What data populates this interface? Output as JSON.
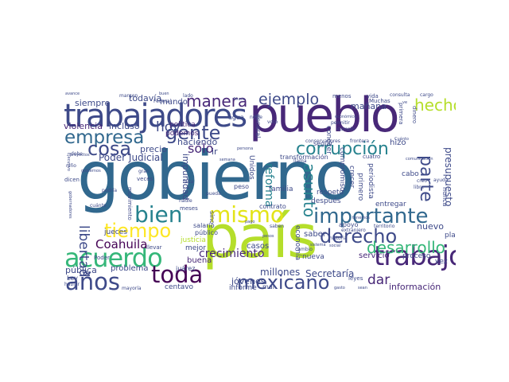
{
  "palette": [
    "#440154",
    "#482878",
    "#3e4a89",
    "#31688e",
    "#26828e",
    "#1f9e89",
    "#35b779",
    "#6ece58",
    "#b5de2b",
    "#fde725"
  ],
  "words": [
    {
      "text": "gobierno",
      "color": "#31688e"
    },
    {
      "text": "país",
      "color": "#b5de2b"
    },
    {
      "text": "pueblo",
      "color": "#482878"
    },
    {
      "text": "trabajadores",
      "color": "#3e4a89"
    },
    {
      "text": "mismo",
      "color": "#e3e418"
    },
    {
      "text": "importante",
      "color": "#31688e"
    },
    {
      "text": "acuerdo",
      "color": "#35b779"
    },
    {
      "text": "años",
      "color": "#3e4a89"
    },
    {
      "text": "toda",
      "color": "#440154"
    },
    {
      "text": "trabajo",
      "color": "#482878"
    },
    {
      "text": "bien",
      "color": "#26828e"
    },
    {
      "text": "tiempo",
      "color": "#fde725"
    },
    {
      "text": "mexicano",
      "color": "#3e4a89"
    },
    {
      "text": "derecho",
      "color": "#3e4a89"
    },
    {
      "text": "corrupción",
      "color": "#26828e"
    },
    {
      "text": "empresa",
      "color": "#31688e"
    },
    {
      "text": "gente",
      "color": "#3e4a89"
    },
    {
      "text": "cosa",
      "color": "#3e4a89"
    },
    {
      "text": "manera",
      "color": "#482878"
    },
    {
      "text": "ejemplo",
      "color": "#3e4a89"
    },
    {
      "text": "hecho",
      "color": "#b5de2b"
    },
    {
      "text": "parte",
      "color": "#3e4a89"
    },
    {
      "text": "desarrollo",
      "color": "#35b779"
    },
    {
      "text": "asunto",
      "color": "#26828e"
    },
    {
      "text": "crecimiento",
      "color": "#482878"
    },
    {
      "text": "hoy",
      "color": "#3e4a89"
    },
    {
      "text": "sólo",
      "color": "#482878"
    },
    {
      "text": "libertad",
      "color": "#3e4a89"
    },
    {
      "text": "Coahuila",
      "color": "#440154"
    },
    {
      "text": "dar",
      "color": "#482878"
    },
    {
      "text": "reforma",
      "color": "#26828e"
    },
    {
      "text": "nuevo",
      "color": "#3e4a89"
    },
    {
      "text": "información",
      "color": "#482878"
    },
    {
      "text": "Secretaría",
      "color": "#3e4a89"
    },
    {
      "text": "millones",
      "color": "#3e4a89"
    },
    {
      "text": "mañana",
      "color": "#3e4a89"
    },
    {
      "text": "presupuesto",
      "color": "#3e4a89"
    },
    {
      "text": "haciendo",
      "color": "#3e4a89"
    },
    {
      "text": "precio",
      "color": "#3e4a89"
    },
    {
      "text": "impunidad",
      "color": "#3e4a89"
    },
    {
      "text": "Poder Judicial",
      "color": "#3e4a89"
    },
    {
      "text": "servicio",
      "color": "#482878"
    },
    {
      "text": "saber",
      "color": "#3e4a89"
    },
    {
      "text": "violencia",
      "color": "#482878"
    },
    {
      "text": "incluso",
      "color": "#3e4a89"
    },
    {
      "text": "siempre",
      "color": "#3e4a89"
    },
    {
      "text": "todavía",
      "color": "#3e4a89"
    },
    {
      "text": "mundo",
      "color": "#3e4a89"
    },
    {
      "text": "política",
      "color": "#482878"
    },
    {
      "text": "podemos",
      "color": "#482878"
    },
    {
      "text": "jóvenes",
      "color": "#3e4a89"
    },
    {
      "text": "informe",
      "color": "#3e4a89"
    },
    {
      "text": "centavo",
      "color": "#3e4a89"
    },
    {
      "text": "mayoría",
      "color": "#3e4a89"
    },
    {
      "text": "problema",
      "color": "#3e4a89"
    },
    {
      "text": "pública",
      "color": "#3e4a89"
    },
    {
      "text": "buena",
      "color": "#482878"
    },
    {
      "text": "mejor",
      "color": "#3e4a89"
    },
    {
      "text": "justicia",
      "color": "#b5de2b"
    },
    {
      "text": "jueces",
      "color": "#3e4a89"
    },
    {
      "text": "casos",
      "color": "#3e4a89"
    },
    {
      "text": "familia",
      "color": "#3e4a89"
    },
    {
      "text": "respeto",
      "color": "#3e4a89"
    },
    {
      "text": "después",
      "color": "#3e4a89"
    },
    {
      "text": "compromiso",
      "color": "#3e4a89"
    },
    {
      "text": "conocer",
      "color": "#3e4a89"
    },
    {
      "text": "crecer",
      "color": "#3e4a89"
    },
    {
      "text": "primero",
      "color": "#3e4a89"
    },
    {
      "text": "periodista",
      "color": "#3e4a89"
    },
    {
      "text": "entregar",
      "color": "#3e4a89"
    },
    {
      "text": "hizo",
      "color": "#3e4a89"
    },
    {
      "text": "cabo",
      "color": "#3e4a89"
    },
    {
      "text": "plan",
      "color": "#3e4a89"
    },
    {
      "text": "proceso",
      "color": "#3e4a89"
    },
    {
      "text": "economía",
      "color": "#3e4a89"
    },
    {
      "text": "nueva",
      "color": "#3e4a89"
    },
    {
      "text": "seguir",
      "color": "#3e4a89"
    },
    {
      "text": "apoyo",
      "color": "#3e4a89"
    },
    {
      "text": "contrato",
      "color": "#3e4a89"
    },
    {
      "text": "salario",
      "color": "#3e4a89"
    },
    {
      "text": "público",
      "color": "#3e4a89"
    },
    {
      "text": "peso",
      "color": "#3e4a89"
    },
    {
      "text": "agua",
      "color": "#3e4a89"
    },
    {
      "text": "ir",
      "color": "#3e4a89"
    },
    {
      "text": "sino",
      "color": "#3e4a89"
    },
    {
      "text": "Unidos",
      "color": "#3e4a89"
    },
    {
      "text": "general",
      "color": "#3e4a89"
    },
    {
      "text": "transformación",
      "color": "#3e4a89"
    },
    {
      "text": "cumplir",
      "color": "#3e4a89"
    },
    {
      "text": "menos",
      "color": "#3e4a89"
    },
    {
      "text": "vida",
      "color": "#3e4a89"
    },
    {
      "text": "consulta",
      "color": "#3e4a89"
    },
    {
      "text": "cargo",
      "color": "#3e4a89"
    },
    {
      "text": "Muchas",
      "color": "#3e4a89"
    },
    {
      "text": "dinero",
      "color": "#3e4a89"
    },
    {
      "text": "primera",
      "color": "#3e4a89"
    },
    {
      "text": "vez",
      "color": "#3e4a89"
    },
    {
      "text": "Ley",
      "color": "#3e4a89"
    },
    {
      "text": "mal",
      "color": "#3e4a89"
    },
    {
      "text": "leyes",
      "color": "#3e4a89"
    },
    {
      "text": "juárez",
      "color": "#3e4a89"
    },
    {
      "text": "llevar",
      "color": "#3e4a89"
    },
    {
      "text": "historia",
      "color": "#3e4a89"
    },
    {
      "text": "territorio",
      "color": "#3e4a89"
    },
    {
      "text": "extranjero",
      "color": "#3e4a89"
    },
    {
      "text": "conservadores",
      "color": "#3e4a89"
    },
    {
      "text": "frontera",
      "color": "#3e4a89"
    },
    {
      "text": "movimiento",
      "color": "#3e4a89"
    },
    {
      "text": "veces",
      "color": "#3e4a89"
    },
    {
      "text": "falta",
      "color": "#3e4a89"
    },
    {
      "text": "pueda",
      "color": "#3e4a89"
    },
    {
      "text": "meses",
      "color": "#3e4a89"
    },
    {
      "text": "nadie",
      "color": "#3e4a89"
    },
    {
      "text": "cambio",
      "color": "#3e4a89"
    },
    {
      "text": "saben",
      "color": "#3e4a89"
    },
    {
      "text": "ayuda",
      "color": "#3e4a89"
    },
    {
      "text": "libre",
      "color": "#3e4a89"
    },
    {
      "text": "creo",
      "color": "#3e4a89"
    },
    {
      "text": "dicen",
      "color": "#3e4a89"
    },
    {
      "text": "niño",
      "color": "#3e4a89"
    },
    {
      "text": "debe",
      "color": "#3e4a89"
    },
    {
      "text": "avance",
      "color": "#3e4a89"
    },
    {
      "text": "margen",
      "color": "#3e4a89"
    },
    {
      "text": "gobernadores",
      "color": "#3e4a89"
    },
    {
      "text": "Ejecutivo",
      "color": "#3e4a89"
    },
    {
      "text": "proyectos",
      "color": "#3e4a89"
    },
    {
      "text": "podría",
      "color": "#3e4a89"
    },
    {
      "text": "cuánto",
      "color": "#3e4a89"
    },
    {
      "text": "comunicación",
      "color": "#3e4a89"
    },
    {
      "text": "voto",
      "color": "#3e4a89"
    },
    {
      "text": "cuatro",
      "color": "#3e4a89"
    },
    {
      "text": "semana",
      "color": "#3e4a89"
    },
    {
      "text": "persona",
      "color": "#3e4a89"
    },
    {
      "text": "gran",
      "color": "#3e4a89"
    },
    {
      "text": "llama",
      "color": "#3e4a89"
    },
    {
      "text": "norte",
      "color": "#3e4a89"
    },
    {
      "text": "permitir",
      "color": "#3e4a89"
    },
    {
      "text": "económico",
      "color": "#3e4a89"
    },
    {
      "text": "Federal",
      "color": "#3e4a89"
    },
    {
      "text": "social",
      "color": "#3e4a89"
    },
    {
      "text": "Poder",
      "color": "#3e4a89"
    },
    {
      "text": "pesos",
      "color": "#3e4a89"
    },
    {
      "text": "lado",
      "color": "#3e4a89"
    },
    {
      "text": "buen",
      "color": "#3e4a89"
    },
    {
      "text": "hablar",
      "color": "#3e4a89"
    },
    {
      "text": "Cuánto",
      "color": "#3e4a89"
    },
    {
      "text": "Ahora",
      "color": "#3e4a89"
    },
    {
      "text": "nunca",
      "color": "#3e4a89"
    },
    {
      "text": "tenemos",
      "color": "#3e4a89"
    },
    {
      "text": "sistema",
      "color": "#3e4a89"
    },
    {
      "text": "pago",
      "color": "#3e4a89"
    },
    {
      "text": "gobiernos",
      "color": "#3e4a89"
    },
    {
      "text": "ve",
      "color": "#3e4a89"
    },
    {
      "text": "sean",
      "color": "#3e4a89"
    },
    {
      "text": "gasto",
      "color": "#3e4a89"
    }
  ]
}
